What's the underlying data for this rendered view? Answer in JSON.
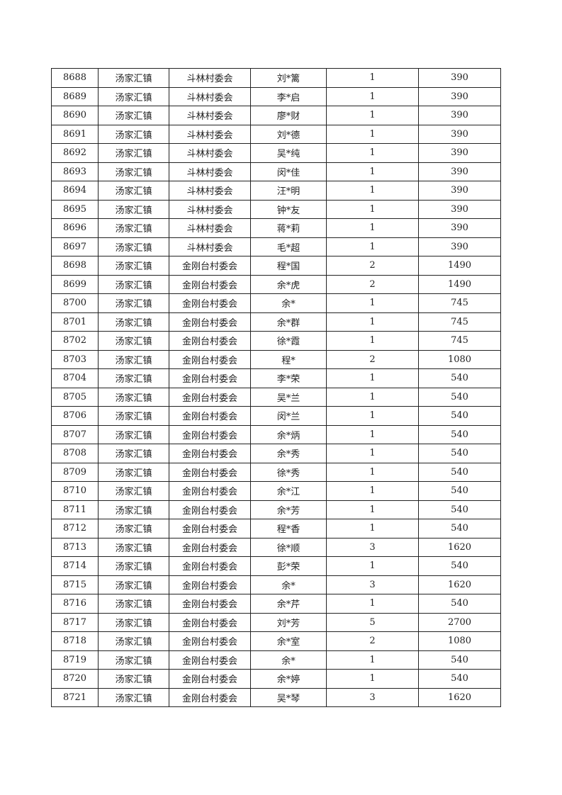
{
  "table": {
    "rows": [
      [
        "8688",
        "汤家汇镇",
        "斗林村委会",
        "刘*篱",
        "1",
        "390"
      ],
      [
        "8689",
        "汤家汇镇",
        "斗林村委会",
        "李*启",
        "1",
        "390"
      ],
      [
        "8690",
        "汤家汇镇",
        "斗林村委会",
        "廖*财",
        "1",
        "390"
      ],
      [
        "8691",
        "汤家汇镇",
        "斗林村委会",
        "刘*德",
        "1",
        "390"
      ],
      [
        "8692",
        "汤家汇镇",
        "斗林村委会",
        "吴*纯",
        "1",
        "390"
      ],
      [
        "8693",
        "汤家汇镇",
        "斗林村委会",
        "闵*佳",
        "1",
        "390"
      ],
      [
        "8694",
        "汤家汇镇",
        "斗林村委会",
        "汪*明",
        "1",
        "390"
      ],
      [
        "8695",
        "汤家汇镇",
        "斗林村委会",
        "钟*友",
        "1",
        "390"
      ],
      [
        "8696",
        "汤家汇镇",
        "斗林村委会",
        "蒋*莉",
        "1",
        "390"
      ],
      [
        "8697",
        "汤家汇镇",
        "斗林村委会",
        "毛*超",
        "1",
        "390"
      ],
      [
        "8698",
        "汤家汇镇",
        "金刚台村委会",
        "程*国",
        "2",
        "1490"
      ],
      [
        "8699",
        "汤家汇镇",
        "金刚台村委会",
        "余*虎",
        "2",
        "1490"
      ],
      [
        "8700",
        "汤家汇镇",
        "金刚台村委会",
        "余*",
        "1",
        "745"
      ],
      [
        "8701",
        "汤家汇镇",
        "金刚台村委会",
        "余*群",
        "1",
        "745"
      ],
      [
        "8702",
        "汤家汇镇",
        "金刚台村委会",
        "徐*霞",
        "1",
        "745"
      ],
      [
        "8703",
        "汤家汇镇",
        "金刚台村委会",
        "程*",
        "2",
        "1080"
      ],
      [
        "8704",
        "汤家汇镇",
        "金刚台村委会",
        "李*荣",
        "1",
        "540"
      ],
      [
        "8705",
        "汤家汇镇",
        "金刚台村委会",
        "吴*兰",
        "1",
        "540"
      ],
      [
        "8706",
        "汤家汇镇",
        "金刚台村委会",
        "闵*兰",
        "1",
        "540"
      ],
      [
        "8707",
        "汤家汇镇",
        "金刚台村委会",
        "余*炳",
        "1",
        "540"
      ],
      [
        "8708",
        "汤家汇镇",
        "金刚台村委会",
        "余*秀",
        "1",
        "540"
      ],
      [
        "8709",
        "汤家汇镇",
        "金刚台村委会",
        "徐*秀",
        "1",
        "540"
      ],
      [
        "8710",
        "汤家汇镇",
        "金刚台村委会",
        "余*江",
        "1",
        "540"
      ],
      [
        "8711",
        "汤家汇镇",
        "金刚台村委会",
        "余*芳",
        "1",
        "540"
      ],
      [
        "8712",
        "汤家汇镇",
        "金刚台村委会",
        "程*香",
        "1",
        "540"
      ],
      [
        "8713",
        "汤家汇镇",
        "金刚台村委会",
        "徐*顺",
        "3",
        "1620"
      ],
      [
        "8714",
        "汤家汇镇",
        "金刚台村委会",
        "彭*荣",
        "1",
        "540"
      ],
      [
        "8715",
        "汤家汇镇",
        "金刚台村委会",
        "余*",
        "3",
        "1620"
      ],
      [
        "8716",
        "汤家汇镇",
        "金刚台村委会",
        "余*芹",
        "1",
        "540"
      ],
      [
        "8717",
        "汤家汇镇",
        "金刚台村委会",
        "刘*芳",
        "5",
        "2700"
      ],
      [
        "8718",
        "汤家汇镇",
        "金刚台村委会",
        "余*室",
        "2",
        "1080"
      ],
      [
        "8719",
        "汤家汇镇",
        "金刚台村委会",
        "余*",
        "1",
        "540"
      ],
      [
        "8720",
        "汤家汇镇",
        "金刚台村委会",
        "余*婷",
        "1",
        "540"
      ],
      [
        "8721",
        "汤家汇镇",
        "金刚台村委会",
        "吴*琴",
        "3",
        "1620"
      ]
    ]
  }
}
